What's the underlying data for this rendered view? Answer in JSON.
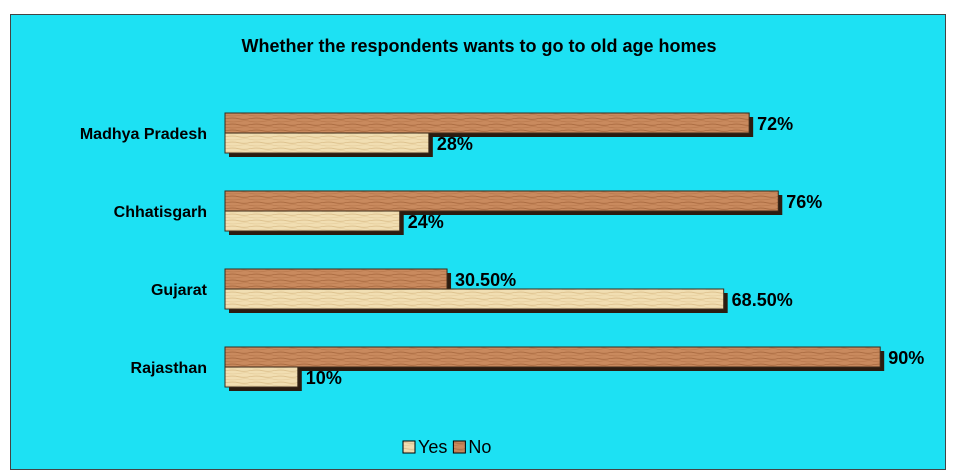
{
  "chart_data": {
    "type": "bar",
    "orientation": "horizontal",
    "title": "Whether the respondents wants to go to old age homes",
    "categories": [
      "Madhya Pradesh",
      "Chhatisgarh",
      "Gujarat",
      "Rajasthan"
    ],
    "series": [
      {
        "name": "Yes",
        "values": [
          28,
          24,
          68.5,
          10
        ],
        "labels": [
          "28%",
          "24%",
          "68.50%",
          "10%"
        ],
        "color": "#f1deb2"
      },
      {
        "name": "No",
        "values": [
          72,
          76,
          30.5,
          90
        ],
        "labels": [
          "72%",
          "76%",
          "30.50%",
          "90%"
        ],
        "color": "#c98a5e"
      }
    ],
    "xlim": [
      0,
      90
    ],
    "grid": false,
    "legend": "bottom",
    "background": "#1de1f3"
  }
}
